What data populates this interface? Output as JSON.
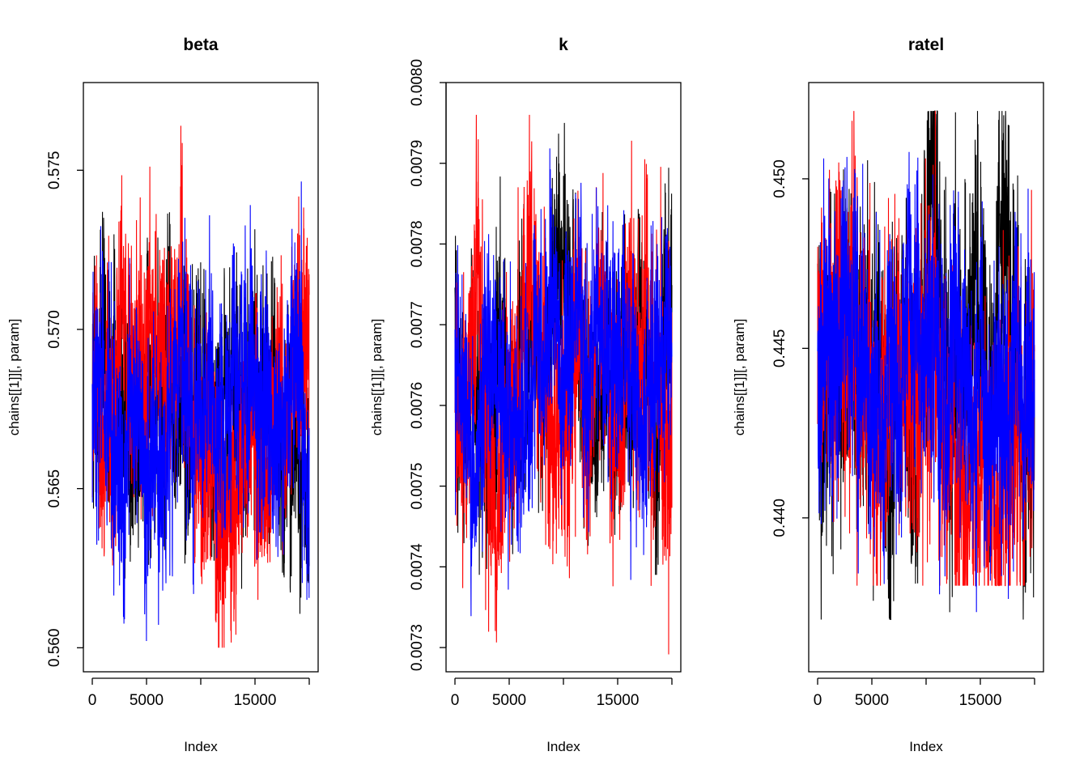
{
  "chart_data": [
    {
      "type": "line",
      "title": "beta",
      "xlabel": "Index",
      "ylabel": "chains[[1]][, param]",
      "xlim": [
        0,
        20000
      ],
      "ylim": [
        0.5595,
        0.5775
      ],
      "x_ticks": [
        0,
        5000,
        10000,
        15000,
        20000
      ],
      "x_tick_labels": [
        "0",
        "5000",
        "",
        "15000",
        ""
      ],
      "y_ticks": [
        0.56,
        0.565,
        0.57,
        0.575
      ],
      "y_tick_labels": [
        "0.560",
        "0.565",
        "0.570",
        "0.575"
      ],
      "grid": false,
      "legend": "none",
      "series": [
        {
          "color": "#000000",
          "mean": 0.5675,
          "sd": 0.0018,
          "min": 0.5597,
          "max": 0.575
        },
        {
          "color": "#ff0000",
          "mean": 0.5677,
          "sd": 0.0018,
          "min": 0.56,
          "max": 0.5772
        },
        {
          "color": "#0000ff",
          "mean": 0.5675,
          "sd": 0.0018,
          "min": 0.5595,
          "max": 0.5757
        }
      ]
    },
    {
      "type": "line",
      "title": "k",
      "xlabel": "Index",
      "ylabel": "chains[[1]][, param]",
      "xlim": [
        0,
        20000
      ],
      "ylim": [
        0.00728,
        0.00799
      ],
      "x_ticks": [
        0,
        5000,
        10000,
        15000,
        20000
      ],
      "x_tick_labels": [
        "0",
        "5000",
        "",
        "15000",
        ""
      ],
      "y_ticks": [
        0.0073,
        0.0074,
        0.0075,
        0.0076,
        0.0077,
        0.0078,
        0.0079,
        0.008
      ],
      "y_tick_labels": [
        "0.0073",
        "0.0074",
        "0.0075",
        "0.0076",
        "0.0077",
        "0.0078",
        "0.0079",
        "0.0080"
      ],
      "grid": false,
      "legend": "none",
      "series": [
        {
          "color": "#000000",
          "mean": 0.00765,
          "sd": 7e-05,
          "min": 0.00739,
          "max": 0.00795
        },
        {
          "color": "#ff0000",
          "mean": 0.00765,
          "sd": 8e-05,
          "min": 0.00728,
          "max": 0.00796
        },
        {
          "color": "#0000ff",
          "mean": 0.00765,
          "sd": 7e-05,
          "min": 0.00732,
          "max": 0.00799
        }
      ]
    },
    {
      "type": "line",
      "title": "ratel",
      "xlabel": "Index",
      "ylabel": "chains[[1]][, param]",
      "xlim": [
        0,
        20000
      ],
      "ylim": [
        0.4357,
        0.4526
      ],
      "x_ticks": [
        0,
        5000,
        10000,
        15000,
        20000
      ],
      "x_tick_labels": [
        "0",
        "5000",
        "",
        "15000",
        ""
      ],
      "y_ticks": [
        0.44,
        0.445,
        0.45
      ],
      "y_tick_labels": [
        "0.440",
        "0.445",
        "0.450"
      ],
      "grid": false,
      "legend": "none",
      "series": [
        {
          "color": "#000000",
          "mean": 0.4445,
          "sd": 0.0022,
          "min": 0.437,
          "max": 0.452
        },
        {
          "color": "#ff0000",
          "mean": 0.4445,
          "sd": 0.0022,
          "min": 0.438,
          "max": 0.452
        },
        {
          "color": "#0000ff",
          "mean": 0.445,
          "sd": 0.002,
          "min": 0.4357,
          "max": 0.4524
        }
      ]
    }
  ]
}
